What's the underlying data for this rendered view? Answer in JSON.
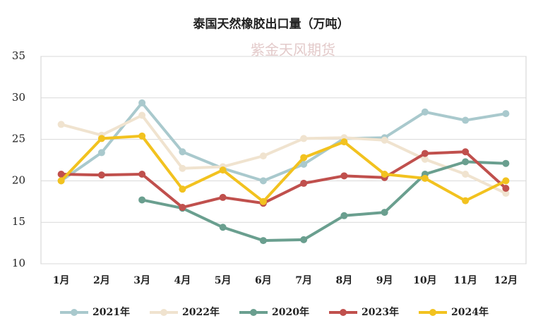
{
  "chart_data": {
    "type": "line",
    "title": "泰国天然橡胶出口量（万吨）",
    "watermark": "紫金天风期货",
    "categories": [
      "1月",
      "2月",
      "3月",
      "4月",
      "5月",
      "6月",
      "7月",
      "8月",
      "9月",
      "10月",
      "11月",
      "12月"
    ],
    "series": [
      {
        "name": "2021年",
        "color": "#a9c9cd",
        "values": [
          20.0,
          23.4,
          29.4,
          23.5,
          21.5,
          20.0,
          22.0,
          25.1,
          25.2,
          28.3,
          27.3,
          28.1
        ]
      },
      {
        "name": "2022年",
        "color": "#f0e3cf",
        "values": [
          26.8,
          25.5,
          27.9,
          21.5,
          21.7,
          23.0,
          25.1,
          25.2,
          24.9,
          22.6,
          20.8,
          18.5
        ]
      },
      {
        "name": "2020年",
        "color": "#6a9f8f",
        "values": [
          null,
          null,
          17.7,
          16.7,
          14.4,
          12.8,
          12.9,
          15.8,
          16.2,
          20.8,
          22.3,
          22.1
        ]
      },
      {
        "name": "2023年",
        "color": "#c0504d",
        "values": [
          20.8,
          20.7,
          20.8,
          16.8,
          18.0,
          17.3,
          19.7,
          20.6,
          20.4,
          23.3,
          23.5,
          19.1
        ]
      },
      {
        "name": "2024年",
        "color": "#f2c21f",
        "values": [
          20.0,
          25.1,
          25.4,
          19.0,
          21.3,
          17.5,
          22.8,
          24.7,
          20.8,
          20.3,
          17.6,
          20.0
        ]
      }
    ],
    "ylim": [
      10,
      35
    ],
    "yticks": [
      10,
      15,
      20,
      25,
      30,
      35
    ],
    "grid": true
  }
}
